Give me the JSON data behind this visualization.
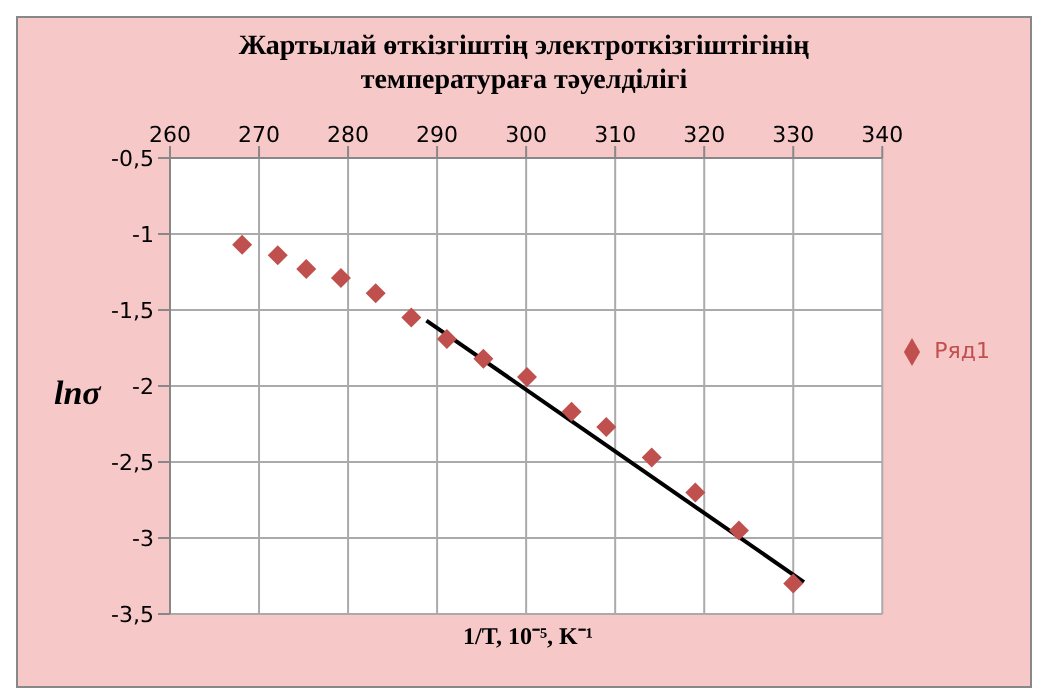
{
  "chart_data": {
    "type": "scatter",
    "title": "Жартылай өткізгіштің электроткізгіштігінің температураға тәуелділігі",
    "xlabel": "1/T, 10⁻⁵, K⁻¹",
    "ylabel": "lnσ",
    "series": [
      {
        "name": "Ряд1",
        "color": "#c0504d",
        "marker": "diamond",
        "x": [
          268.1,
          272.1,
          275.3,
          279.2,
          283.1,
          287.1,
          291.1,
          295.2,
          300.1,
          305.1,
          309,
          314.1,
          319,
          323.9,
          330
        ],
        "values": [
          -1.07,
          -1.14,
          -1.23,
          -1.29,
          -1.39,
          -1.55,
          -1.69,
          -1.82,
          -1.94,
          -2.17,
          -2.27,
          -2.47,
          -2.7,
          -2.95,
          -3.3
        ]
      },
      {
        "type": "line",
        "color": "#000000",
        "marker": "none",
        "x": [
          288.8,
          331.2
        ],
        "values": [
          -1.57,
          -3.29
        ]
      }
    ],
    "xlim": [
      260,
      340
    ],
    "xticks": [
      260,
      270,
      280,
      290,
      300,
      310,
      320,
      330,
      340
    ],
    "ylim": [
      -3.5,
      -0.5
    ],
    "yticks": [
      {
        "value": -3.5,
        "label": "-3,5"
      },
      -3,
      {
        "value": -2.5,
        "label": "-2,5"
      },
      -2,
      {
        "value": -1.5,
        "label": "-1,5"
      },
      -1,
      {
        "value": -0.5,
        "label": "-0,5"
      }
    ],
    "grid": true,
    "legend": "right"
  }
}
